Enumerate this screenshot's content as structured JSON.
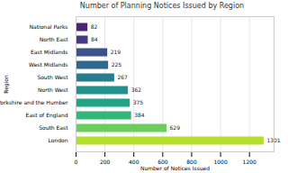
{
  "chart_data": {
    "type": "bar",
    "orientation": "horizontal",
    "title": "Number of Planning Notices Issued by Region",
    "x_label": "Number of Notices Issued",
    "y_label": "Region",
    "categories": [
      "National Parks",
      "North East",
      "East Midlands",
      "West Midlands",
      "South West",
      "North West",
      "Yorkshire and the Humber",
      "East of England",
      "South East",
      "London"
    ],
    "values": [
      82,
      84,
      219,
      225,
      267,
      362,
      375,
      384,
      629,
      1301
    ],
    "colors": [
      "#482576",
      "#443983",
      "#3b528b",
      "#31688e",
      "#287c8e",
      "#21918c",
      "#20a486",
      "#35b779",
      "#6ccd5a",
      "#b4de2c"
    ],
    "xlim": [
      0,
      1370
    ],
    "xticks": [
      0,
      200,
      400,
      600,
      800,
      1000,
      1200
    ],
    "grid": true,
    "data_labels": true
  }
}
